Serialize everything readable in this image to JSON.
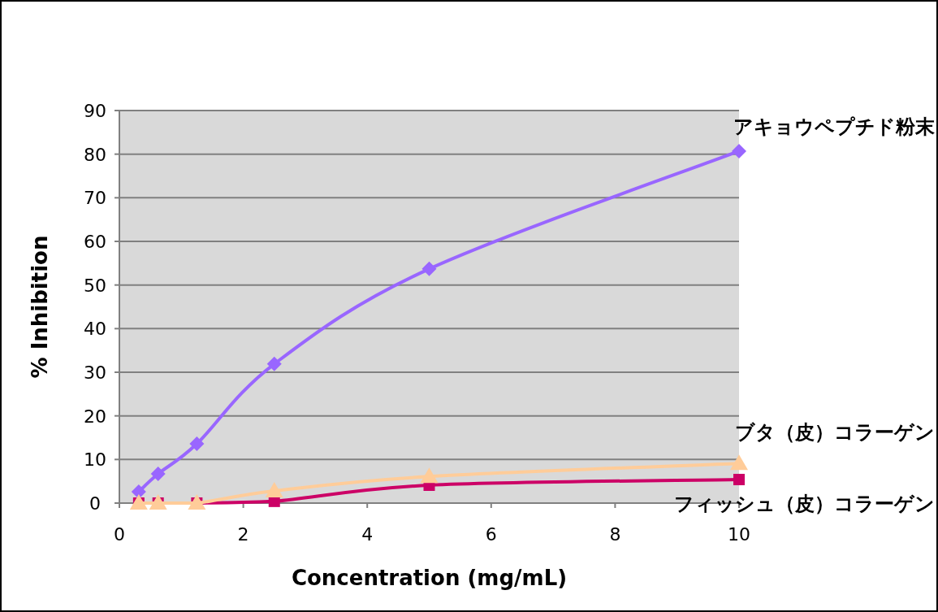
{
  "chart_data": {
    "type": "line",
    "xlabel": "Concentration (mg/mL)",
    "ylabel": "% Inhibition",
    "xlim": [
      0,
      10
    ],
    "xticks": [
      0,
      2,
      4,
      6,
      8,
      10
    ],
    "ylim": [
      0,
      90
    ],
    "yticks": [
      0,
      10,
      20,
      30,
      40,
      50,
      60,
      70,
      80,
      90
    ],
    "grid": "y",
    "legend": false,
    "x": [
      0.3125,
      0.625,
      1.25,
      2.5,
      5,
      10
    ],
    "series": [
      {
        "name": "アキョウペプチド粉末",
        "color": "#9966ff",
        "marker": "diamond",
        "values": [
          2.6,
          6.7,
          13.6,
          31.9,
          53.7,
          80.7
        ]
      },
      {
        "name": "フィッシュ（皮）コラーゲン",
        "color": "#cc0066",
        "marker": "square",
        "values": [
          0,
          0,
          0,
          0.4,
          4.1,
          5.4
        ]
      },
      {
        "name": "ブタ（皮）コラーゲン",
        "color": "#ffcc99",
        "marker": "triangle",
        "values": [
          0,
          0,
          0,
          2.8,
          6.1,
          9.1
        ]
      }
    ]
  }
}
